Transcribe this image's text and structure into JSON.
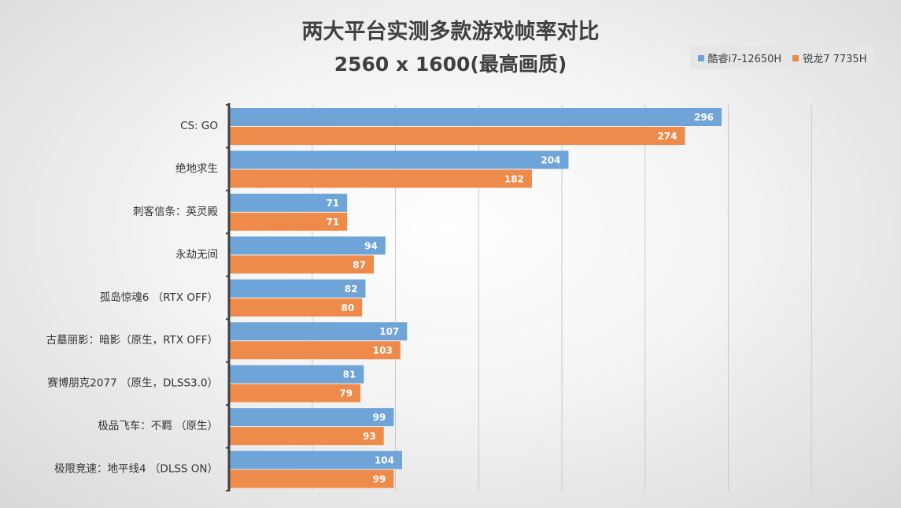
{
  "chart_data": {
    "type": "bar",
    "orientation": "horizontal",
    "title": "两大平台实测多款游戏帧率对比",
    "subtitle": "2560 x 1600(最高画质)",
    "categories": [
      "CS: GO",
      "绝地求生",
      "刺客信条：英灵殿",
      "永劫无间",
      "孤岛惊魂6 （RTX OFF）",
      "古墓丽影：暗影（原生，RTX OFF）",
      "赛博朋克2077 （原生，DLSS3.0）",
      "极品飞车：不羁 （原生）",
      "极限竞速：地平线4 （DLSS ON）"
    ],
    "series": [
      {
        "name": "酷睿i7-12650H",
        "color": "#6fa4d8",
        "values": [
          296,
          204,
          71,
          94,
          82,
          107,
          81,
          99,
          104
        ]
      },
      {
        "name": "锐龙7 7735H",
        "color": "#ee8a4a",
        "values": [
          274,
          182,
          71,
          87,
          80,
          103,
          79,
          93,
          99
        ]
      }
    ],
    "xlim": [
      0,
      350
    ],
    "x_grid_step": 50,
    "grid": true,
    "tick_labels_visible": false,
    "legend": "top-right"
  }
}
